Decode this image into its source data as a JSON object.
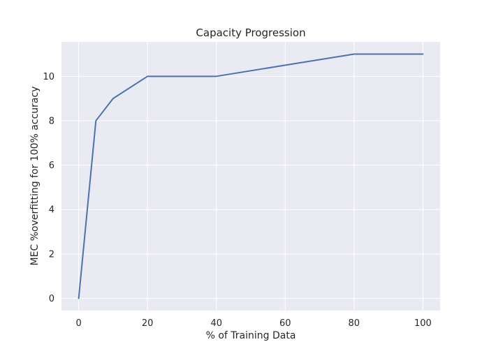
{
  "chart_data": {
    "type": "line",
    "title": "Capacity Progression",
    "xlabel": "% of Training Data",
    "ylabel": "MEC %overfitting for 100% accuracy",
    "xlim": [
      -5,
      105
    ],
    "ylim": [
      -0.55,
      11.55
    ],
    "xticks": [
      0,
      20,
      40,
      60,
      80,
      100
    ],
    "yticks": [
      0,
      2,
      4,
      6,
      8,
      10
    ],
    "grid": true,
    "legend": "none",
    "colors": {
      "background": "#EAEAF2",
      "grid": "#FFFFFF",
      "line": "#4C72B0"
    },
    "series": [
      {
        "x": [
          0,
          5,
          10,
          20,
          40,
          60,
          80,
          100
        ],
        "values": [
          0,
          8,
          9,
          10,
          10,
          10.5,
          11,
          11
        ]
      }
    ]
  }
}
